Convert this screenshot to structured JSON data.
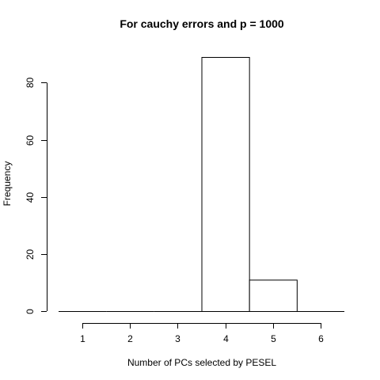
{
  "chart_data": {
    "type": "bar",
    "title": "For cauchy errors and p = 1000",
    "xlabel": "Number of PCs selected by PESEL",
    "ylabel": "Frequency",
    "bins": [
      {
        "left": 0.5,
        "right": 1.5,
        "value": 0
      },
      {
        "left": 1.5,
        "right": 2.5,
        "value": 0
      },
      {
        "left": 2.5,
        "right": 3.5,
        "value": 0
      },
      {
        "left": 3.5,
        "right": 4.5,
        "value": 89
      },
      {
        "left": 4.5,
        "right": 5.5,
        "value": 11
      },
      {
        "left": 5.5,
        "right": 6.5,
        "value": 0
      }
    ],
    "xticks": [
      1,
      2,
      3,
      4,
      5,
      6
    ],
    "yticks": [
      0,
      20,
      40,
      60,
      80
    ],
    "xlim": [
      0.5,
      6.5
    ],
    "ylim": [
      0,
      89
    ],
    "grid": false,
    "bar_fill": "#ffffff",
    "bar_stroke": "#000000"
  }
}
